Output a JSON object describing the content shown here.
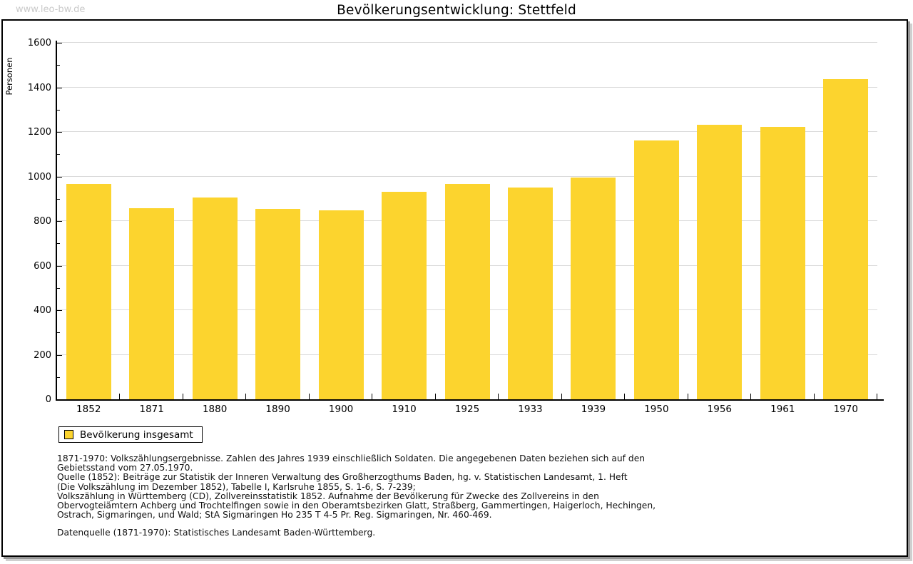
{
  "watermark": "www.leo-bw.de",
  "title": "Bevölkerungsentwicklung: Stettfeld",
  "colors": {
    "bar": "#FCD42E",
    "grid": "#DADADA",
    "axis": "#000000",
    "watermark": "#C9C9C9",
    "frame_border": "#000000",
    "frame_shadow": "#969696"
  },
  "chart_data": {
    "type": "bar",
    "title": "Bevölkerungsentwicklung: Stettfeld",
    "xlabel": "",
    "ylabel": "Personen",
    "ylim": [
      0,
      1600
    ],
    "ytick_step": 200,
    "yminor_step": 100,
    "grid": true,
    "legend_position": "bottom-left",
    "categories": [
      "1852",
      "1871",
      "1880",
      "1890",
      "1900",
      "1910",
      "1925",
      "1933",
      "1939",
      "1950",
      "1956",
      "1961",
      "1970"
    ],
    "series": [
      {
        "name": "Bevölkerung insgesamt",
        "values": [
          966,
          859,
          906,
          853,
          847,
          931,
          966,
          949,
          996,
          1161,
          1232,
          1223,
          1437
        ]
      }
    ]
  },
  "legend": {
    "label": "Bevölkerung insgesamt"
  },
  "notes": {
    "source_lines": [
      "1871-1970: Volkszählungsergebnisse. Zahlen des Jahres 1939 einschließlich Soldaten. Die angegebenen Daten beziehen sich auf den",
      "Gebietsstand vom 27.05.1970.",
      "Quelle (1852): Beiträge zur Statistik der Inneren Verwaltung des Großherzogthums Baden, hg. v. Statistischen Landesamt, 1. Heft",
      "(Die Volkszählung im Dezember 1852), Tabelle I, Karlsruhe 1855, S. 1-6, S. 7-239;",
      "Volkszählung in Württemberg (CD), Zollvereinsstatistik 1852. Aufnahme der Bevölkerung für Zwecke des Zollvereins in den",
      "Obervogteiämtern Achberg und Trochtelfingen sowie in den Oberamtsbezirken Glatt, Straßberg, Gammertingen, Haigerloch, Hechingen,",
      "Ostrach, Sigmaringen, und Wald; StA Sigmaringen Ho 235 T 4-5 Pr. Reg. Sigmaringen, Nr. 460-469."
    ],
    "datasource": "Datenquelle (1871-1970): Statistisches Landesamt Baden-Württemberg."
  }
}
